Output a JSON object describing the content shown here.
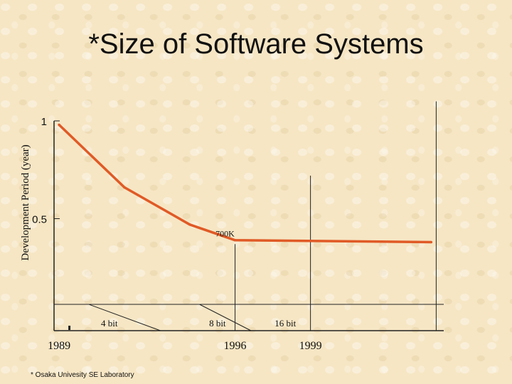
{
  "title": "*Size of Software Systems",
  "footer": "* Osaka Univesity SE Laboratory",
  "colors": {
    "series": "#e05a26",
    "axis": "#222222",
    "background": "#f6e6c4"
  },
  "chart_data": {
    "type": "line",
    "title": "*Size of Software Systems",
    "ylabel": "Development Period (year)",
    "xlabel": "",
    "ylim": [
      0,
      1
    ],
    "y_ticks": [
      {
        "value": 1,
        "label": "1"
      },
      {
        "value": 0.5,
        "label": "0.5"
      }
    ],
    "x_labels": [
      {
        "value": 1989,
        "label": "1989"
      },
      {
        "value": 1996,
        "label": "1996"
      },
      {
        "value": 1999,
        "label": "1999"
      }
    ],
    "x_range": [
      1988.8,
      2004.3
    ],
    "series": [
      {
        "x": [
          1989.0,
          1991.6,
          1994.2,
          1996.0,
          2003.8
        ],
        "values": [
          0.98,
          0.66,
          0.47,
          0.39,
          0.38
        ]
      }
    ],
    "annotations": [
      {
        "text": "700K",
        "x": 1995.6,
        "y": 0.41
      }
    ],
    "verticals": [
      {
        "x": 1996.0,
        "top": 0.37
      },
      {
        "x": 1999.0,
        "top": 0.72
      },
      {
        "x": 2004.0,
        "top": 1.1
      }
    ],
    "bit_labels": [
      {
        "text": "4 bit",
        "x": 1991.0
      },
      {
        "text": "8 bit",
        "x": 1995.3
      },
      {
        "text": "16 bit",
        "x": 1998.0
      }
    ],
    "diagonals": [
      {
        "x1": 1991.6,
        "x2": 1993.6
      },
      {
        "x1": 1996.0,
        "x2": 1997.2
      }
    ],
    "grid": false,
    "legend": "none"
  }
}
